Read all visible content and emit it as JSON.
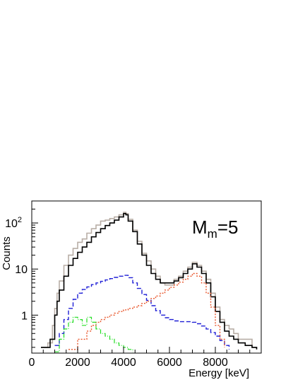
{
  "chart_data": {
    "type": "line",
    "title": "",
    "xlabel": "Energy [keV]",
    "ylabel": "Counts",
    "xlim": [
      0,
      10000
    ],
    "ylim": [
      0.15,
      300
    ],
    "yscale": "log",
    "grid": false,
    "annotation": {
      "main": "M",
      "sub": "m",
      "suffix": "=5"
    },
    "x_ticks": [
      {
        "value": 0,
        "label": "0"
      },
      {
        "value": 2000,
        "label": "2000"
      },
      {
        "value": 4000,
        "label": "4000"
      },
      {
        "value": 6000,
        "label": "6000"
      },
      {
        "value": 8000,
        "label": "8000"
      }
    ],
    "y_ticks": [
      {
        "value": 1,
        "label": "1"
      },
      {
        "value": 10,
        "label": "10"
      },
      {
        "value": 100,
        "label": "10",
        "exp": "2"
      }
    ],
    "series": [
      {
        "color": "#b8aea6",
        "style": "solid",
        "points": [
          [
            400,
            0.2
          ],
          [
            700,
            0.25
          ],
          [
            900,
            0.6
          ],
          [
            1000,
            1.4
          ],
          [
            1100,
            3.0
          ],
          [
            1200,
            5.5
          ],
          [
            1400,
            12
          ],
          [
            1600,
            20
          ],
          [
            1800,
            28
          ],
          [
            2000,
            38
          ],
          [
            2200,
            45
          ],
          [
            2400,
            60
          ],
          [
            2600,
            75
          ],
          [
            2800,
            90
          ],
          [
            3000,
            110
          ],
          [
            3200,
            115
          ],
          [
            3400,
            125
          ],
          [
            3600,
            135
          ],
          [
            3800,
            150
          ],
          [
            4000,
            170
          ],
          [
            4100,
            160
          ],
          [
            4200,
            120
          ],
          [
            4400,
            70
          ],
          [
            4600,
            40
          ],
          [
            4800,
            22
          ],
          [
            5000,
            15
          ],
          [
            5200,
            10
          ],
          [
            5400,
            7
          ],
          [
            5600,
            5
          ],
          [
            5800,
            4.5
          ],
          [
            6000,
            4.5
          ],
          [
            6200,
            6
          ],
          [
            6400,
            7
          ],
          [
            6600,
            9
          ],
          [
            6800,
            11
          ],
          [
            7000,
            14
          ],
          [
            7200,
            12
          ],
          [
            7400,
            9
          ],
          [
            7600,
            6
          ],
          [
            7800,
            3
          ],
          [
            8000,
            1.5
          ],
          [
            8200,
            0.8
          ],
          [
            8400,
            0.6
          ],
          [
            8600,
            0.5
          ],
          [
            8800,
            0.4
          ],
          [
            9000,
            0.3
          ],
          [
            9300,
            0.3
          ],
          [
            9600,
            0.2
          ],
          [
            9800,
            0.18
          ]
        ]
      },
      {
        "color": "#000000",
        "style": "solid",
        "points": [
          [
            400,
            0.2
          ],
          [
            800,
            0.3
          ],
          [
            1000,
            1.0
          ],
          [
            1100,
            2.0
          ],
          [
            1200,
            3.5
          ],
          [
            1400,
            7
          ],
          [
            1600,
            12
          ],
          [
            1800,
            17
          ],
          [
            2000,
            23
          ],
          [
            2200,
            30
          ],
          [
            2400,
            38
          ],
          [
            2600,
            50
          ],
          [
            2800,
            62
          ],
          [
            3000,
            75
          ],
          [
            3200,
            88
          ],
          [
            3400,
            100
          ],
          [
            3600,
            115
          ],
          [
            3800,
            135
          ],
          [
            4000,
            160
          ],
          [
            4100,
            150
          ],
          [
            4200,
            110
          ],
          [
            4400,
            65
          ],
          [
            4600,
            35
          ],
          [
            4800,
            20
          ],
          [
            5000,
            12
          ],
          [
            5200,
            8
          ],
          [
            5400,
            6
          ],
          [
            5600,
            5
          ],
          [
            5800,
            5
          ],
          [
            6000,
            5
          ],
          [
            6200,
            5.5
          ],
          [
            6400,
            6.5
          ],
          [
            6600,
            8
          ],
          [
            6800,
            10
          ],
          [
            7000,
            13
          ],
          [
            7200,
            11
          ],
          [
            7400,
            8
          ],
          [
            7600,
            5
          ],
          [
            7800,
            2.5
          ],
          [
            8000,
            1.2
          ],
          [
            8200,
            0.7
          ],
          [
            8400,
            0.45
          ],
          [
            8600,
            0.35
          ],
          [
            8800,
            0.3
          ],
          [
            9000,
            0.25
          ],
          [
            9300,
            0.22
          ],
          [
            9600,
            0.2
          ],
          [
            9800,
            0.18
          ]
        ]
      },
      {
        "color": "#1f1fd6",
        "style": "dashed",
        "points": [
          [
            1000,
            0.22
          ],
          [
            1200,
            0.4
          ],
          [
            1400,
            0.8
          ],
          [
            1600,
            1.4
          ],
          [
            1800,
            2.2
          ],
          [
            2000,
            3.0
          ],
          [
            2200,
            3.6
          ],
          [
            2400,
            4.1
          ],
          [
            2600,
            4.6
          ],
          [
            2800,
            5.0
          ],
          [
            3000,
            5.4
          ],
          [
            3200,
            5.8
          ],
          [
            3400,
            6.2
          ],
          [
            3600,
            6.6
          ],
          [
            3800,
            7.0
          ],
          [
            4000,
            7.3
          ],
          [
            4200,
            6.5
          ],
          [
            4400,
            5.0
          ],
          [
            4600,
            3.8
          ],
          [
            4800,
            2.8
          ],
          [
            5000,
            2.1
          ],
          [
            5200,
            1.6
          ],
          [
            5400,
            1.25
          ],
          [
            5600,
            1.0
          ],
          [
            5800,
            0.88
          ],
          [
            6000,
            0.8
          ],
          [
            6200,
            0.75
          ],
          [
            6400,
            0.72
          ],
          [
            6600,
            0.72
          ],
          [
            6800,
            0.72
          ],
          [
            7000,
            0.7
          ],
          [
            7200,
            0.65
          ],
          [
            7400,
            0.58
          ],
          [
            7600,
            0.5
          ],
          [
            7800,
            0.42
          ],
          [
            8000,
            0.35
          ],
          [
            8200,
            0.28
          ],
          [
            8400,
            0.22
          ],
          [
            8600,
            0.18
          ]
        ]
      },
      {
        "color": "#e8552a",
        "style": "dotted",
        "points": [
          [
            1600,
            0.18
          ],
          [
            2000,
            0.3
          ],
          [
            2400,
            0.45
          ],
          [
            2600,
            0.6
          ],
          [
            2800,
            0.7
          ],
          [
            3000,
            0.8
          ],
          [
            3200,
            0.9
          ],
          [
            3400,
            1.0
          ],
          [
            3600,
            1.1
          ],
          [
            3800,
            1.2
          ],
          [
            4000,
            1.3
          ],
          [
            4200,
            1.4
          ],
          [
            4400,
            1.5
          ],
          [
            4600,
            1.6
          ],
          [
            4800,
            1.8
          ],
          [
            5000,
            2.0
          ],
          [
            5200,
            2.3
          ],
          [
            5400,
            2.6
          ],
          [
            5600,
            3.0
          ],
          [
            5800,
            3.5
          ],
          [
            6000,
            4.0
          ],
          [
            6200,
            4.5
          ],
          [
            6400,
            5.2
          ],
          [
            6600,
            6.0
          ],
          [
            6800,
            7.0
          ],
          [
            7000,
            8.0
          ],
          [
            7200,
            7.0
          ],
          [
            7400,
            5.0
          ],
          [
            7600,
            3.0
          ],
          [
            7800,
            1.5
          ],
          [
            8000,
            0.6
          ],
          [
            8200,
            0.3
          ],
          [
            8400,
            0.2
          ]
        ]
      },
      {
        "color": "#22dd22",
        "style": "dashdot",
        "points": [
          [
            1000,
            0.16
          ],
          [
            1200,
            0.3
          ],
          [
            1400,
            0.5
          ],
          [
            1600,
            0.7
          ],
          [
            1800,
            0.9
          ],
          [
            2000,
            0.8
          ],
          [
            2200,
            0.6
          ],
          [
            2400,
            0.9
          ],
          [
            2600,
            0.7
          ],
          [
            2800,
            0.5
          ],
          [
            3000,
            0.4
          ],
          [
            3200,
            0.35
          ],
          [
            3400,
            0.3
          ],
          [
            3600,
            0.25
          ],
          [
            3800,
            0.22
          ],
          [
            4000,
            0.2
          ],
          [
            4200,
            0.18
          ],
          [
            4400,
            0.16
          ]
        ]
      }
    ]
  }
}
